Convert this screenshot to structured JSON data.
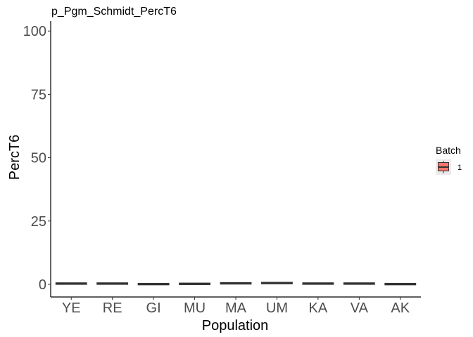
{
  "chart_data": {
    "type": "box",
    "title": "p_Pgm_Schmidt_PercT6",
    "xlabel": "Population",
    "ylabel": "PercT6",
    "ylim": [
      0,
      102
    ],
    "yticks": [
      0,
      25,
      50,
      75,
      100
    ],
    "categories": [
      "YE",
      "RE",
      "GI",
      "MU",
      "MA",
      "UM",
      "KA",
      "VA",
      "AK"
    ],
    "series": [
      {
        "name": "1",
        "color": "#F8766D",
        "median": [
          0.3,
          0.3,
          0.1,
          0.2,
          0.4,
          0.5,
          0.3,
          0.3,
          0.1
        ]
      }
    ],
    "legend": {
      "title": "Batch",
      "position": "right",
      "labels": [
        "1"
      ]
    },
    "grid": false
  }
}
